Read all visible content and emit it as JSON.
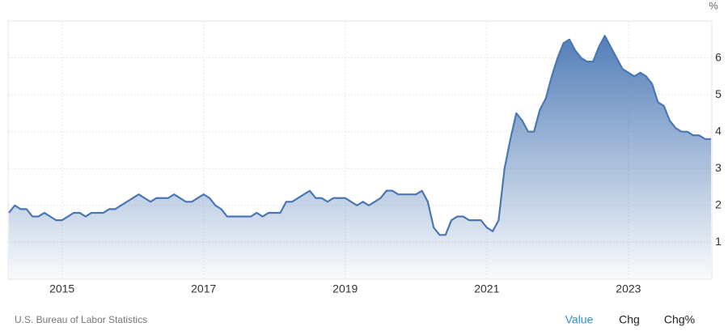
{
  "chart_data": {
    "type": "area",
    "unit": "%",
    "source": "U.S. Bureau of Labor Statistics",
    "buttons": [
      "Value",
      "Chg",
      "Chg%"
    ],
    "x": [
      "2014-04",
      "2014-05",
      "2014-06",
      "2014-07",
      "2014-08",
      "2014-09",
      "2014-10",
      "2014-11",
      "2014-12",
      "2015-01",
      "2015-02",
      "2015-03",
      "2015-04",
      "2015-05",
      "2015-06",
      "2015-07",
      "2015-08",
      "2015-09",
      "2015-10",
      "2015-11",
      "2015-12",
      "2016-01",
      "2016-02",
      "2016-03",
      "2016-04",
      "2016-05",
      "2016-06",
      "2016-07",
      "2016-08",
      "2016-09",
      "2016-10",
      "2016-11",
      "2016-12",
      "2017-01",
      "2017-02",
      "2017-03",
      "2017-04",
      "2017-05",
      "2017-06",
      "2017-07",
      "2017-08",
      "2017-09",
      "2017-10",
      "2017-11",
      "2017-12",
      "2018-01",
      "2018-02",
      "2018-03",
      "2018-04",
      "2018-05",
      "2018-06",
      "2018-07",
      "2018-08",
      "2018-09",
      "2018-10",
      "2018-11",
      "2018-12",
      "2019-01",
      "2019-02",
      "2019-03",
      "2019-04",
      "2019-05",
      "2019-06",
      "2019-07",
      "2019-08",
      "2019-09",
      "2019-10",
      "2019-11",
      "2019-12",
      "2020-01",
      "2020-02",
      "2020-03",
      "2020-04",
      "2020-05",
      "2020-06",
      "2020-07",
      "2020-08",
      "2020-09",
      "2020-10",
      "2020-11",
      "2020-12",
      "2021-01",
      "2021-02",
      "2021-03",
      "2021-04",
      "2021-05",
      "2021-06",
      "2021-07",
      "2021-08",
      "2021-09",
      "2021-10",
      "2021-11",
      "2021-12",
      "2022-01",
      "2022-02",
      "2022-03",
      "2022-04",
      "2022-05",
      "2022-06",
      "2022-07",
      "2022-08",
      "2022-09",
      "2022-10",
      "2022-11",
      "2022-12",
      "2023-01",
      "2023-02",
      "2023-03",
      "2023-04",
      "2023-05",
      "2023-06",
      "2023-07",
      "2023-08",
      "2023-09",
      "2023-10",
      "2023-11",
      "2023-12",
      "2024-01",
      "2024-02",
      "2024-03"
    ],
    "series": [
      {
        "color": "#4a77b4",
        "values": [
          1.8,
          2.0,
          1.9,
          1.9,
          1.7,
          1.7,
          1.8,
          1.7,
          1.6,
          1.6,
          1.7,
          1.8,
          1.8,
          1.7,
          1.8,
          1.8,
          1.8,
          1.9,
          1.9,
          2.0,
          2.1,
          2.2,
          2.3,
          2.2,
          2.1,
          2.2,
          2.2,
          2.2,
          2.3,
          2.2,
          2.1,
          2.1,
          2.2,
          2.3,
          2.2,
          2.0,
          1.9,
          1.7,
          1.7,
          1.7,
          1.7,
          1.7,
          1.8,
          1.7,
          1.8,
          1.8,
          1.8,
          2.1,
          2.1,
          2.2,
          2.3,
          2.4,
          2.2,
          2.2,
          2.1,
          2.2,
          2.2,
          2.2,
          2.1,
          2.0,
          2.1,
          2.0,
          2.1,
          2.2,
          2.4,
          2.4,
          2.3,
          2.3,
          2.3,
          2.3,
          2.4,
          2.1,
          1.4,
          1.2,
          1.2,
          1.6,
          1.7,
          1.7,
          1.6,
          1.6,
          1.6,
          1.4,
          1.3,
          1.6,
          3.0,
          3.8,
          4.5,
          4.3,
          4.0,
          4.0,
          4.6,
          4.9,
          5.5,
          6.0,
          6.4,
          6.5,
          6.2,
          6.0,
          5.9,
          5.9,
          6.3,
          6.6,
          6.3,
          6.0,
          5.7,
          5.6,
          5.5,
          5.6,
          5.5,
          5.3,
          4.8,
          4.7,
          4.3,
          4.1,
          4.0,
          4.0,
          3.9,
          3.9,
          3.8,
          3.8
        ]
      }
    ],
    "xlim": [
      "2014-04",
      "2024-03"
    ],
    "xticks": [
      2015,
      2017,
      2019,
      2021,
      2023
    ],
    "ylim": [
      0,
      7
    ],
    "yticks": [
      1,
      2,
      3,
      4,
      5,
      6
    ],
    "grid": true
  }
}
